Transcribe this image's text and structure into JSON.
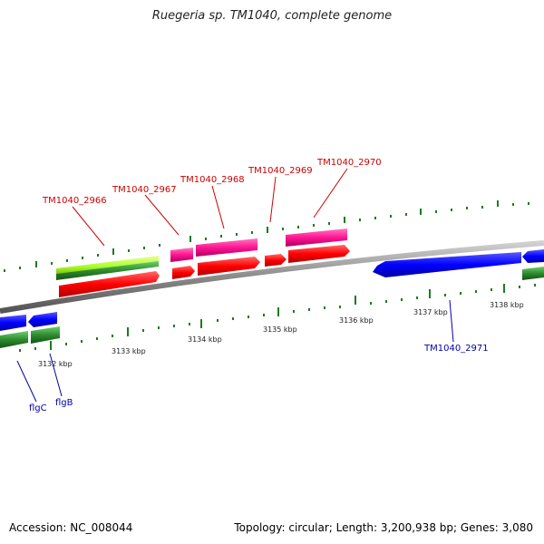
{
  "title": "Ruegeria sp. TM1040, complete genome",
  "footer": {
    "accession": "Accession: NC_008044",
    "summary": "Topology: circular; Length: 3,200,938 bp; Genes: 3,080"
  },
  "colors": {
    "backbone": "#8a8a8a",
    "cds_red": "#ff0000",
    "cds_magenta": "#ff1493",
    "cds_blue": "#0000ff",
    "gene_green": "#2e8b2e",
    "gene_lime": "#adff2f",
    "tick_green": "#1f7a1f",
    "label_red": "#cc0000",
    "label_blue": "#0000aa"
  },
  "tick_labels": [
    "3132 kbp",
    "3133 kbp",
    "3134 kbp",
    "3135 kbp",
    "3136 kbp",
    "3137 kbp",
    "3138 kbp"
  ],
  "genes_top": [
    {
      "label": "TM1040_2966",
      "color": "cds_red"
    },
    {
      "label": "TM1040_2967",
      "color": "cds_red"
    },
    {
      "label": "TM1040_2968",
      "color": "cds_red"
    },
    {
      "label": "TM1040_2969",
      "color": "cds_red"
    },
    {
      "label": "TM1040_2970",
      "color": "cds_red"
    }
  ],
  "genes_bottom": [
    {
      "label": "flgC"
    },
    {
      "label": "flgB"
    },
    {
      "label": "TM1040_2971"
    }
  ]
}
